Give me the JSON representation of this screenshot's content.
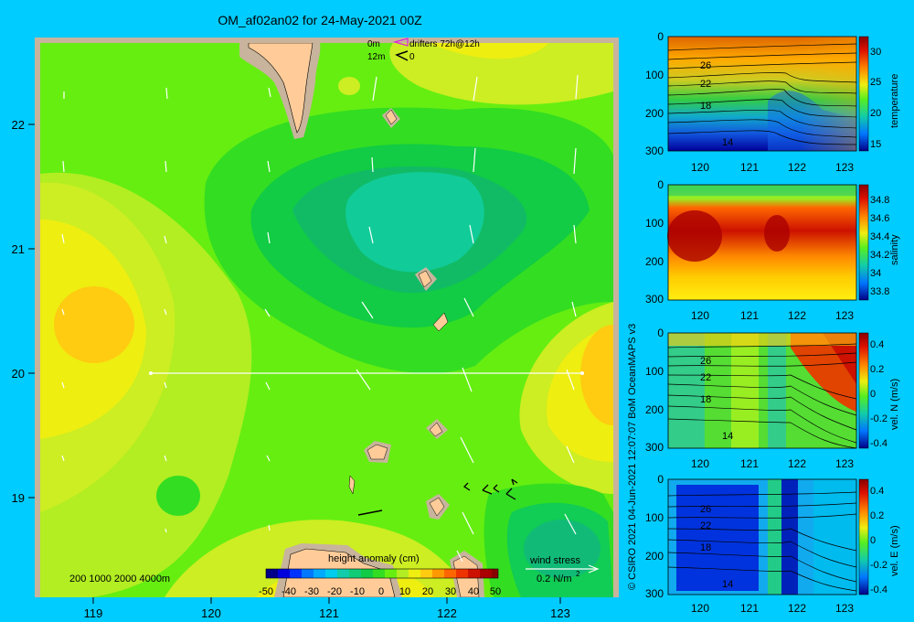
{
  "title": "OM_af02an02 for 24-May-2021 00Z",
  "map": {
    "x_ticks": [
      "119",
      "120",
      "121",
      "122",
      "123"
    ],
    "y_ticks": [
      "22",
      "21",
      "20",
      "19"
    ],
    "legend_drifters_0m": "0m",
    "legend_drifters_text": "drifters 72h@12h",
    "legend_drifters_12m": "12m",
    "legend_zero": "0",
    "depth_legend": "200  1000  2000  4000m",
    "colorbar_title": "height anomaly (cm)",
    "colorbar_ticks": [
      "-50",
      "-40",
      "-30",
      "-20",
      "-10",
      "0",
      "10",
      "20",
      "30",
      "40",
      "50"
    ],
    "wind_label": "wind stress",
    "wind_scale": "0.2 N/m",
    "wind_scale_sup": "2"
  },
  "side_text": "© CSIRO 2021  04-Jun-2021 12:07:07 BoM OceanMAPS v3",
  "sections": [
    {
      "ylabel": "temperature",
      "cbar_ticks": [
        "30",
        "25",
        "20",
        "15"
      ],
      "contour_labels": [
        "26",
        "22",
        "18",
        "14"
      ]
    },
    {
      "ylabel": "salinity",
      "cbar_ticks": [
        "34.8",
        "34.6",
        "34.4",
        "34.2",
        "34",
        "33.8"
      ]
    },
    {
      "ylabel": "vel. N (m/s)",
      "cbar_ticks": [
        "0.4",
        "0.2",
        "0",
        "-0.2",
        "-0.4"
      ],
      "contour_labels": [
        "26",
        "22",
        "18",
        "14"
      ]
    },
    {
      "ylabel": "vel. E (m/s)",
      "cbar_ticks": [
        "0.4",
        "0.2",
        "0",
        "-0.2",
        "-0.4"
      ],
      "contour_labels": [
        "26",
        "22",
        "18",
        "14"
      ]
    }
  ],
  "section_x_ticks": [
    "120",
    "121",
    "122",
    "123"
  ],
  "section_y_ticks": [
    "0",
    "100",
    "200",
    "300"
  ]
}
